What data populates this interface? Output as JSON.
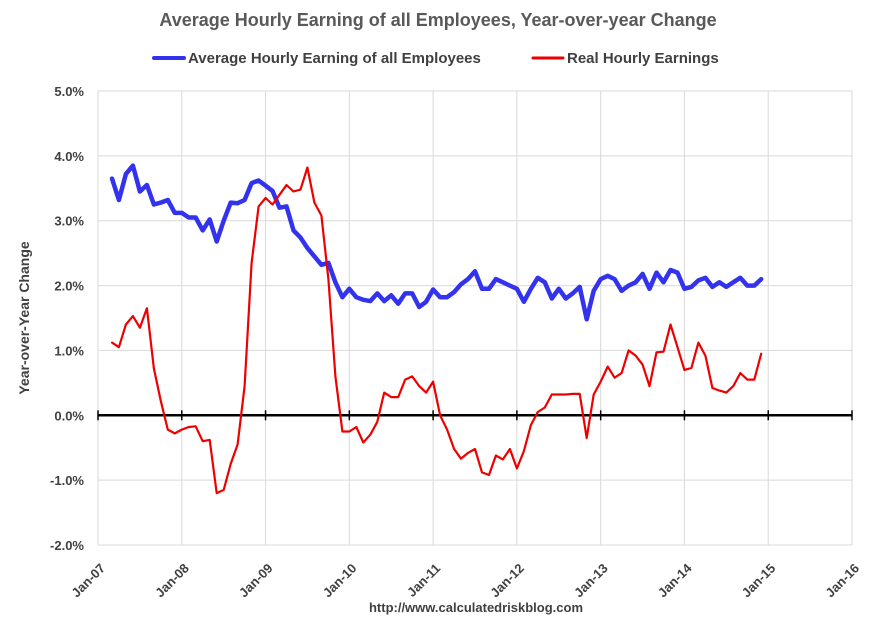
{
  "chart_data": {
    "type": "line",
    "title": "Average Hourly Earning of all Employees, Year-over-year Change",
    "ylabel": "Year-over-Year Change",
    "xlabel": "",
    "source": "http://www.calculatedriskblog.com",
    "ylim": [
      -2.0,
      5.0
    ],
    "xlim": [
      2007.0,
      2016.0
    ],
    "yticks": [
      {
        "value": 5.0,
        "label": "5.0%"
      },
      {
        "value": 4.0,
        "label": "4.0%"
      },
      {
        "value": 3.0,
        "label": "3.0%"
      },
      {
        "value": 2.0,
        "label": "2.0%"
      },
      {
        "value": 1.0,
        "label": "1.0%"
      },
      {
        "value": 0.0,
        "label": "0.0%"
      },
      {
        "value": -1.0,
        "label": "-1.0%"
      },
      {
        "value": -2.0,
        "label": "-2.0%"
      }
    ],
    "xticks": [
      {
        "value": 2007,
        "label": "Jan-07"
      },
      {
        "value": 2008,
        "label": "Jan-08"
      },
      {
        "value": 2009,
        "label": "Jan-09"
      },
      {
        "value": 2010,
        "label": "Jan-10"
      },
      {
        "value": 2011,
        "label": "Jan-11"
      },
      {
        "value": 2012,
        "label": "Jan-12"
      },
      {
        "value": 2013,
        "label": "Jan-13"
      },
      {
        "value": 2014,
        "label": "Jan-14"
      },
      {
        "value": 2015,
        "label": "Jan-15"
      },
      {
        "value": 2016,
        "label": "Jan-16"
      }
    ],
    "x_start": 2007.1667,
    "x_step_months": 1,
    "series": [
      {
        "name": "Average Hourly Earning of all Employees",
        "color": "#3333ee",
        "values": [
          3.65,
          3.32,
          3.72,
          3.85,
          3.45,
          3.55,
          3.25,
          3.28,
          3.32,
          3.12,
          3.12,
          3.05,
          3.05,
          2.85,
          3.02,
          2.68,
          3.0,
          3.28,
          3.27,
          3.32,
          3.58,
          3.62,
          3.54,
          3.46,
          3.2,
          3.22,
          2.85,
          2.74,
          2.58,
          2.45,
          2.32,
          2.35,
          2.05,
          1.82,
          1.95,
          1.82,
          1.78,
          1.76,
          1.88,
          1.76,
          1.85,
          1.72,
          1.88,
          1.88,
          1.67,
          1.75,
          1.94,
          1.82,
          1.82,
          1.9,
          2.02,
          2.1,
          2.22,
          1.95,
          1.95,
          2.1,
          2.05,
          2.0,
          1.95,
          1.75,
          1.95,
          2.12,
          2.05,
          1.8,
          1.95,
          1.8,
          1.88,
          1.98,
          1.48,
          1.92,
          2.1,
          2.15,
          2.1,
          1.92,
          2.0,
          2.05,
          2.18,
          1.95,
          2.2,
          2.05,
          2.24,
          2.2,
          1.95,
          1.98,
          2.08,
          2.12,
          1.98,
          2.05,
          1.98,
          2.05,
          2.12,
          2.0,
          2.0,
          2.1
        ]
      },
      {
        "name": "Real Hourly Earnings",
        "color": "#ee0000",
        "values": [
          1.12,
          1.05,
          1.4,
          1.53,
          1.35,
          1.65,
          0.72,
          0.22,
          -0.22,
          -0.28,
          -0.22,
          -0.18,
          -0.17,
          -0.4,
          -0.38,
          -1.2,
          -1.15,
          -0.75,
          -0.45,
          0.45,
          2.35,
          3.22,
          3.35,
          3.25,
          3.4,
          3.55,
          3.45,
          3.48,
          3.82,
          3.28,
          3.08,
          2.1,
          0.6,
          -0.25,
          -0.25,
          -0.18,
          -0.42,
          -0.3,
          -0.1,
          0.35,
          0.28,
          0.28,
          0.55,
          0.6,
          0.45,
          0.35,
          0.52,
          0.0,
          -0.22,
          -0.52,
          -0.67,
          -0.58,
          -0.52,
          -0.88,
          -0.92,
          -0.62,
          -0.68,
          -0.52,
          -0.82,
          -0.55,
          -0.15,
          0.05,
          0.12,
          0.32,
          0.32,
          0.32,
          0.33,
          0.33,
          -0.35,
          0.32,
          0.52,
          0.75,
          0.58,
          0.65,
          1.0,
          0.92,
          0.78,
          0.45,
          0.97,
          0.98,
          1.4,
          1.05,
          0.7,
          0.73,
          1.12,
          0.92,
          0.42,
          0.38,
          0.35,
          0.45,
          0.65,
          0.55,
          0.55,
          0.95
        ]
      }
    ]
  }
}
